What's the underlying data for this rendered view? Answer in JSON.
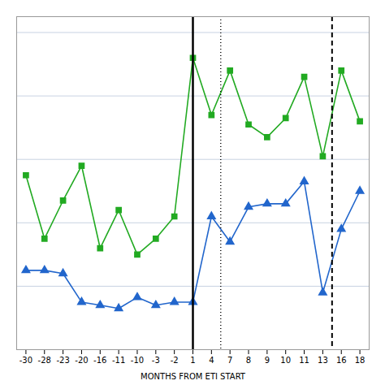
{
  "chart_data": {
    "type": "line",
    "xlabel": "MONTHS FROM ETI START",
    "categories": [
      "-30",
      "-28",
      "-23",
      "-20",
      "-16",
      "-11",
      "-10",
      "-3",
      "-2",
      "1",
      "4",
      "7",
      "8",
      "9",
      "10",
      "11",
      "13",
      "16",
      "18"
    ],
    "series": [
      {
        "color": "#22aa22",
        "marker": "square",
        "line_style": "solid",
        "values": [
          5.5,
          3.5,
          4.7,
          5.8,
          3.2,
          4.4,
          3.0,
          3.5,
          4.2,
          9.2,
          7.4,
          8.8,
          7.1,
          6.7,
          7.3,
          8.6,
          6.1,
          8.8,
          7.2
        ]
      },
      {
        "color": "#2266cc",
        "marker": "triangle",
        "line_style": "solid",
        "values": [
          2.5,
          2.5,
          2.4,
          1.5,
          1.4,
          1.3,
          1.65,
          1.4,
          1.5,
          1.5,
          4.2,
          3.4,
          4.5,
          4.6,
          4.6,
          5.3,
          1.8,
          3.8,
          5.0
        ]
      }
    ],
    "vlines": [
      {
        "position": 9,
        "line_style": "solid"
      },
      {
        "position": 10.5,
        "line_style": "dotted"
      },
      {
        "position": 16.5,
        "line_style": "dashed"
      }
    ],
    "xlim": [
      -0.5,
      18.5
    ],
    "ylim": [
      0,
      10.5
    ],
    "yticks": [
      2,
      4,
      6,
      8,
      10
    ],
    "grid": true,
    "tick_labels": "x"
  }
}
